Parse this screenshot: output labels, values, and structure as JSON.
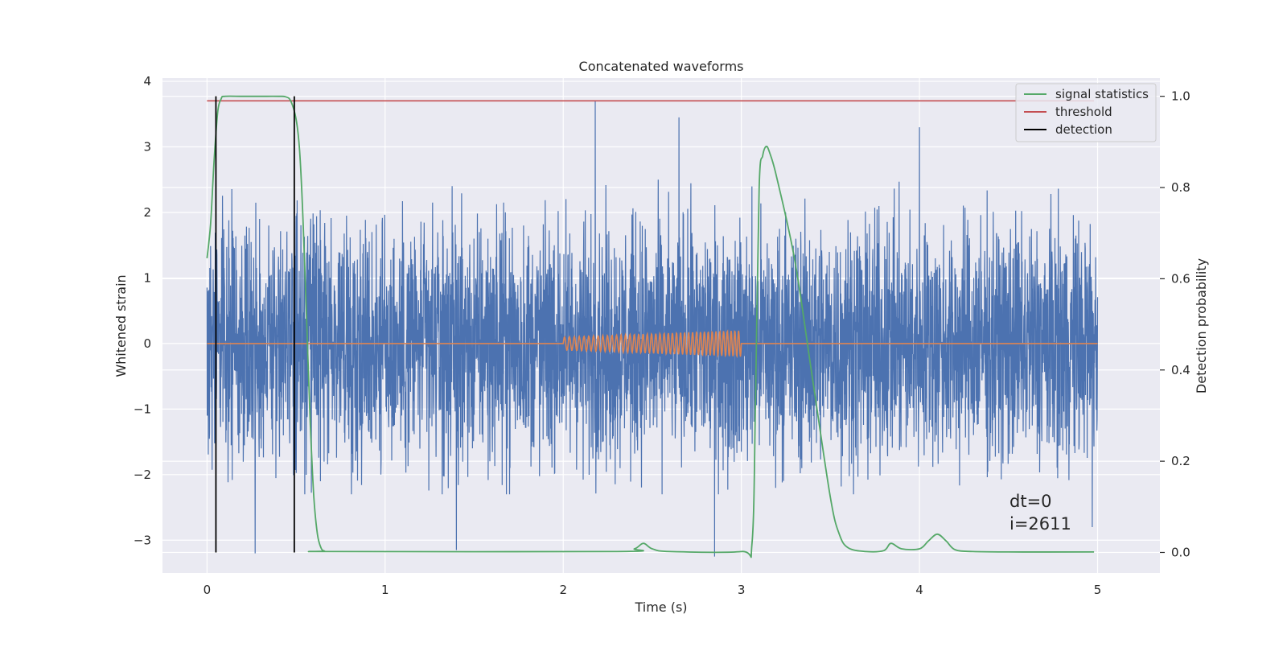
{
  "chart_data": {
    "type": "line",
    "title": "Concatenated waveforms",
    "xlabel": "Time (s)",
    "ylabel_left": "Whitened strain",
    "ylabel_right": "Detection probability",
    "xlim": [
      -0.25,
      5.35
    ],
    "ylim_left": [
      -3.5,
      4.05
    ],
    "ylim_right": [
      -0.045,
      1.04
    ],
    "x_ticks": [
      0,
      1,
      2,
      3,
      4,
      5
    ],
    "x_tick_labels": [
      "0",
      "1",
      "2",
      "3",
      "4",
      "5"
    ],
    "y_left_ticks": [
      -3,
      -2,
      -1,
      0,
      1,
      2,
      3,
      4
    ],
    "y_left_tick_labels": [
      "−3",
      "−2",
      "−1",
      "0",
      "1",
      "2",
      "3",
      "4"
    ],
    "y_right_ticks": [
      0.0,
      0.2,
      0.4,
      0.6,
      0.8,
      1.0
    ],
    "y_right_tick_labels": [
      "0.0",
      "0.2",
      "0.4",
      "0.6",
      "0.8",
      "1.0"
    ],
    "grid": true,
    "legend_position": "top-right",
    "legend": [
      "signal statistics",
      "threshold",
      "detection"
    ],
    "colors": {
      "strain": "#4c72b0",
      "injection": "#dd8452",
      "signal_statistics": "#55a868",
      "threshold": "#c44e52",
      "detection": "#000000",
      "background": "#eaeaf2",
      "grid": "#ffffff"
    },
    "whitened_strain": {
      "x_range": [
        0,
        5
      ],
      "typical_range": [
        -2,
        2.3
      ],
      "extremes": [
        {
          "x": 2.18,
          "y": 3.7
        },
        {
          "x": 2.65,
          "y": 3.45
        },
        {
          "x": 4.0,
          "y": 3.3
        },
        {
          "x": 2.85,
          "y": -3.25
        },
        {
          "x": 0.27,
          "y": -3.2
        },
        {
          "x": 1.4,
          "y": -3.15
        },
        {
          "x": 4.97,
          "y": -2.8
        }
      ]
    },
    "injected_waveform": {
      "x_range": [
        2.0,
        3.0
      ],
      "amplitude_start": 0.1,
      "amplitude_end": 0.2,
      "cycles": 42
    },
    "signal_statistics": {
      "x": [
        0.0,
        0.02,
        0.04,
        0.06,
        0.08,
        0.1,
        0.2,
        0.3,
        0.4,
        0.44,
        0.47,
        0.5,
        0.52,
        0.54,
        0.56,
        0.58,
        0.6,
        0.62,
        0.64,
        0.66,
        0.7,
        2.3,
        2.4,
        2.45,
        2.5,
        2.6,
        3.0,
        3.06,
        3.08,
        3.1,
        3.12,
        3.14,
        3.16,
        3.2,
        3.3,
        3.4,
        3.5,
        3.55,
        3.6,
        3.7,
        3.8,
        3.84,
        3.9,
        4.0,
        4.05,
        4.1,
        4.15,
        4.2,
        4.3,
        4.5,
        4.98
      ],
      "y": [
        0.645,
        0.72,
        0.86,
        0.965,
        0.995,
        1.0,
        1.0,
        1.0,
        1.0,
        0.999,
        0.99,
        0.95,
        0.88,
        0.72,
        0.5,
        0.28,
        0.12,
        0.04,
        0.01,
        0.003,
        0.002,
        0.002,
        0.008,
        0.02,
        0.008,
        0.002,
        0.002,
        0.02,
        0.35,
        0.8,
        0.87,
        0.89,
        0.875,
        0.82,
        0.64,
        0.38,
        0.12,
        0.04,
        0.01,
        0.002,
        0.004,
        0.02,
        0.008,
        0.008,
        0.025,
        0.04,
        0.025,
        0.006,
        0.002,
        0.001,
        0.001
      ]
    },
    "threshold": {
      "x": [
        0.0,
        4.98
      ],
      "value": 0.99
    },
    "detections": [
      {
        "x": 0.05,
        "y_range": [
          0.0,
          1.0
        ]
      },
      {
        "x": 0.49,
        "y_range": [
          0.0,
          1.0
        ]
      }
    ],
    "annotations": [
      "dt=0",
      "i=2611"
    ]
  }
}
